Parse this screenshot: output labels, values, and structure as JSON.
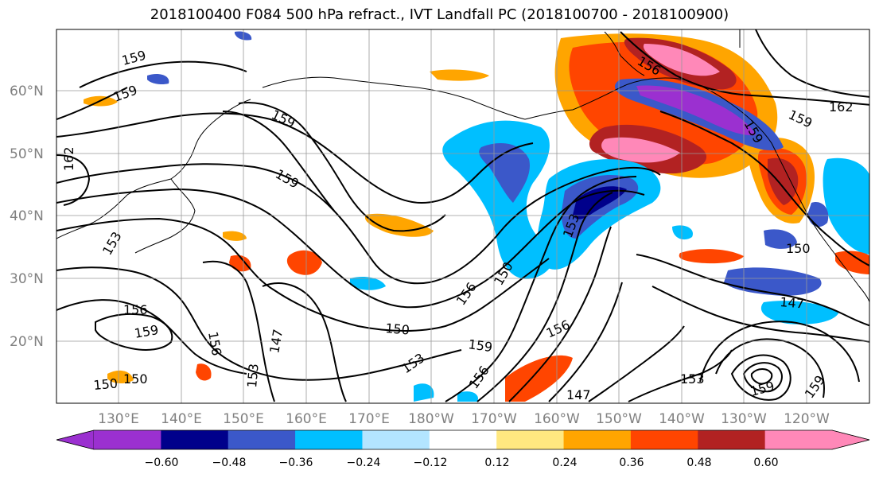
{
  "title": "2018100400 F084 500 hPa refract., IVT Landfall PC (2018100700 - 2018100900)",
  "map": {
    "lat_labels": [
      "20°N",
      "30°N",
      "40°N",
      "50°N",
      "60°N"
    ],
    "lon_labels": [
      "130°E",
      "140°E",
      "150°E",
      "160°E",
      "170°E",
      "180°W",
      "170°W",
      "160°W",
      "150°W",
      "140°W",
      "130°W",
      "120°W"
    ],
    "contour_labels": [
      "159",
      "159",
      "162",
      "159",
      "159",
      "153",
      "156",
      "159",
      "156",
      "153",
      "147",
      "150",
      "150",
      "153",
      "156",
      "150",
      "159",
      "156",
      "153",
      "156",
      "147",
      "150",
      "153",
      "159",
      "159",
      "147",
      "150",
      "159",
      "162",
      "156",
      "159"
    ]
  },
  "colorbar": {
    "colors": [
      "#9b30d0",
      "#00008b",
      "#3b58c9",
      "#00bfff",
      "#b3e5ff",
      "#ffffff",
      "#ffe880",
      "#ffa500",
      "#ff4500",
      "#b22222",
      "#ff88b8"
    ],
    "tick_labels": [
      "−0.60",
      "−0.48",
      "−0.36",
      "−0.24",
      "−0.12",
      "0.12",
      "0.24",
      "0.36",
      "0.48",
      "0.60"
    ]
  }
}
